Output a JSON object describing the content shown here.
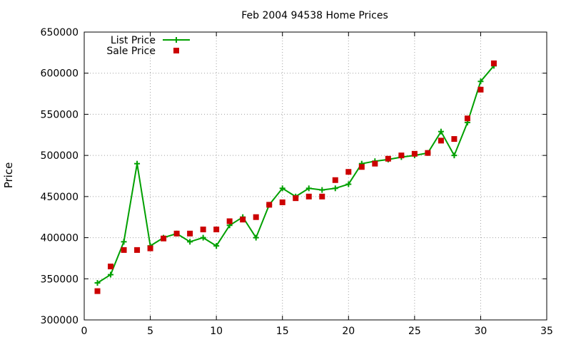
{
  "chart_data": {
    "type": "line",
    "title": "Feb 2004 94538 Home Prices",
    "xlabel": "",
    "ylabel": "Price",
    "xlim": [
      0,
      35
    ],
    "ylim": [
      300000,
      650000
    ],
    "xticks": [
      0,
      5,
      10,
      15,
      20,
      25,
      30,
      35
    ],
    "yticks": [
      300000,
      350000,
      400000,
      450000,
      500000,
      550000,
      600000,
      650000
    ],
    "grid": true,
    "legend_position": "top-left",
    "x": [
      1,
      2,
      3,
      4,
      5,
      6,
      7,
      8,
      9,
      10,
      11,
      12,
      13,
      14,
      15,
      16,
      17,
      18,
      19,
      20,
      21,
      22,
      23,
      24,
      25,
      26,
      27,
      28,
      29,
      30,
      31
    ],
    "series": [
      {
        "name": "List Price",
        "style": "linespoints",
        "marker": "plus",
        "color": "#00a000",
        "values": [
          345000,
          355000,
          395000,
          490000,
          390000,
          400000,
          405000,
          395000,
          400000,
          390000,
          415000,
          425000,
          400000,
          440000,
          460000,
          450000,
          460000,
          458000,
          460000,
          465000,
          490000,
          493000,
          495000,
          498000,
          500000,
          503000,
          529000,
          500000,
          540000,
          590000,
          609000
        ]
      },
      {
        "name": "Sale Price",
        "style": "points",
        "marker": "square",
        "color": "#cc0000",
        "values": [
          335000,
          365000,
          385000,
          385000,
          387000,
          399000,
          405000,
          405000,
          410000,
          410000,
          420000,
          422000,
          425000,
          440000,
          443000,
          448000,
          450000,
          450000,
          470000,
          480000,
          486000,
          490000,
          496000,
          500000,
          502000,
          503000,
          518000,
          520000,
          545000,
          580000,
          612000
        ]
      }
    ]
  }
}
